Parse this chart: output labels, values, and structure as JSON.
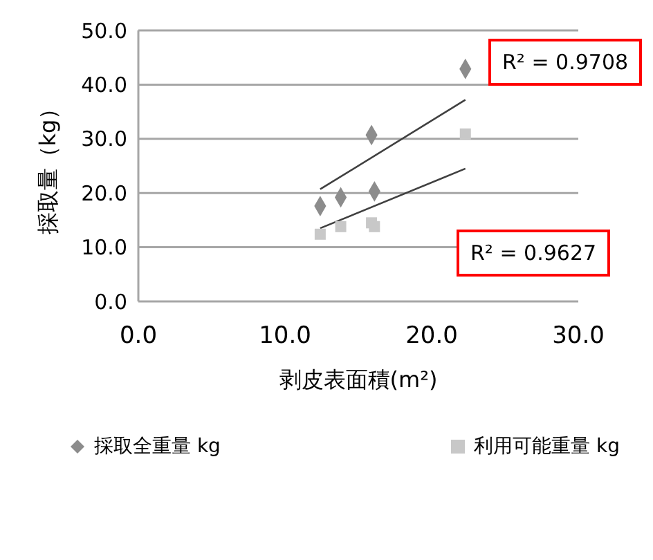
{
  "chart_data": {
    "type": "scatter",
    "xlabel": "剥皮表面積(m²)",
    "ylabel": "採取量（kg）",
    "xlim": [
      0,
      30
    ],
    "xticks": [
      {
        "value": 0,
        "label": "0.0"
      },
      {
        "value": 10,
        "label": "10.0"
      },
      {
        "value": 20,
        "label": "20.0"
      },
      {
        "value": 30,
        "label": "30.0"
      }
    ],
    "ylim": [
      0,
      50
    ],
    "yticks": [
      {
        "value": 0,
        "label": "0.0"
      },
      {
        "value": 10,
        "label": "10.0"
      },
      {
        "value": 20,
        "label": "20.0"
      },
      {
        "value": 30,
        "label": "30.0"
      },
      {
        "value": 40,
        "label": "40.0"
      },
      {
        "value": 50,
        "label": "50.0"
      }
    ],
    "grid": "y",
    "legend": "bottom",
    "series": [
      {
        "name": "採取全重量 kg",
        "marker": "diamond",
        "color": "#8c8c8c",
        "x": [
          12.4,
          13.8,
          15.9,
          16.1,
          22.3
        ],
        "values": [
          17.6,
          19.2,
          30.7,
          20.3,
          42.9
        ]
      },
      {
        "name": "利用可能重量 kg",
        "marker": "square",
        "color": "#c8c8c8",
        "x": [
          12.4,
          13.8,
          15.9,
          16.1,
          22.3
        ],
        "values": [
          12.4,
          13.8,
          14.5,
          13.8,
          30.9
        ]
      },
      {
        "type": "line",
        "color": "#404040",
        "x": [
          12.4,
          22.3
        ],
        "values": [
          20.7,
          37.2
        ]
      },
      {
        "type": "line",
        "color": "#404040",
        "x": [
          12.4,
          22.3
        ],
        "values": [
          13.5,
          24.5
        ]
      }
    ],
    "annotations": [
      "R² = 0.9708",
      "R² = 0.9627"
    ]
  }
}
